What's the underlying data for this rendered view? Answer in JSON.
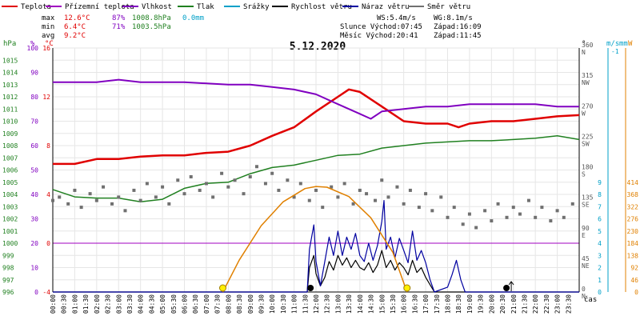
{
  "colors": {
    "teplota": "#e00000",
    "prizemni": "#a000c0",
    "vlhkost": "#8000c0",
    "tlak": "#208020",
    "srazky": "#00a0c8",
    "rychlost": "#000000",
    "naraz": "#0000a0",
    "smer": "#707070",
    "slunce": "#e08000",
    "zero_line": "#a000c0"
  },
  "legend": [
    {
      "label": "Teplota",
      "color": "#e00000"
    },
    {
      "label": "Přízemní teplota",
      "color": "#a000c0"
    },
    {
      "label": "Vlhkost",
      "color": "#8000c0"
    },
    {
      "label": "Tlak",
      "color": "#208020"
    },
    {
      "label": "Srážky",
      "color": "#00a0c8"
    },
    {
      "label": "Rychlost větru",
      "color": "#000000"
    },
    {
      "label": "Náraz větru",
      "color": "#0000a0"
    },
    {
      "label": "Směr větru",
      "color": "#707070"
    }
  ],
  "stats": {
    "max_label": "max",
    "max_temp": "12.6°C",
    "max_hum": "87%",
    "max_press": "1008.8hPa",
    "rain": "0.0mm",
    "min_label": "min",
    "min_temp": "6.4°C",
    "min_hum": "71%",
    "min_press": "1003.5hPa",
    "avg_label": "avg",
    "avg_temp": "9.2°C"
  },
  "info": {
    "ws": "WS:5.4m/s",
    "wg": "WG:8.1m/s",
    "slunce": "Slunce Východ:07:45",
    "slunce_zapad": "Západ:16:09",
    "mesic": "Měsíc  Východ:20:41",
    "mesic_zapad": "Západ:11:45"
  },
  "title": "5.12.2020",
  "axis_units": {
    "hpa": "hPa",
    "pct": "%",
    "temp": "°C",
    "deg": "°",
    "ms": "m/s",
    "mm": "mm",
    "w": "W",
    "cas": "čas"
  },
  "chart_data": {
    "type": "line",
    "title": "5.12.2020",
    "x_unit": "time (HH:MM)",
    "x_ticks": [
      "00:00",
      "00:30",
      "01:00",
      "01:30",
      "02:00",
      "02:30",
      "03:00",
      "03:30",
      "04:00",
      "04:30",
      "05:00",
      "05:30",
      "06:00",
      "06:30",
      "07:00",
      "07:30",
      "08:00",
      "08:30",
      "09:00",
      "09:30",
      "10:00",
      "10:30",
      "11:00",
      "11:30",
      "12:00",
      "12:30",
      "13:00",
      "13:30",
      "14:00",
      "14:30",
      "15:00",
      "15:30",
      "16:00",
      "16:30",
      "17:00",
      "17:30",
      "18:00",
      "18:30",
      "19:00",
      "19:30",
      "20:00",
      "20:30",
      "21:00",
      "21:30",
      "22:00",
      "22:30",
      "23:00",
      "23:30"
    ],
    "xlim": [
      0,
      24
    ],
    "axes": {
      "hpa": {
        "ticks": [
          996,
          997,
          998,
          999,
          1000,
          1001,
          1002,
          1003,
          1004,
          1005,
          1006,
          1007,
          1008,
          1009,
          1010,
          1011,
          1012,
          1013,
          1014,
          1015
        ],
        "range": [
          996,
          1016
        ]
      },
      "pct": {
        "ticks": [
          0,
          10,
          20,
          30,
          40,
          50,
          60,
          70,
          80,
          90,
          100
        ],
        "range": [
          0,
          100
        ]
      },
      "temp": {
        "ticks": [
          -4,
          0,
          4,
          8,
          12,
          16
        ],
        "range": [
          -4,
          16
        ]
      },
      "deg": {
        "ticks": [
          {
            "v": 0,
            "t": "0"
          },
          {
            "v": 45,
            "t": "45"
          },
          {
            "v": 90,
            "t": "90"
          },
          {
            "v": 135,
            "t": "135"
          },
          {
            "v": 180,
            "t": "180"
          },
          {
            "v": 225,
            "t": "225"
          },
          {
            "v": 270,
            "t": "270"
          },
          {
            "v": 315,
            "t": "315"
          },
          {
            "v": 360,
            "t": "360"
          }
        ],
        "dir_labels": [
          "N",
          "NE",
          "E",
          "SE",
          "S",
          "SW",
          "W",
          "NW",
          "N"
        ],
        "range": [
          0,
          360
        ]
      },
      "ms": {
        "ticks": [
          0,
          1,
          2,
          3,
          4,
          5,
          6,
          7,
          8,
          9
        ],
        "range": [
          0,
          20
        ]
      },
      "w": {
        "ticks": [
          0,
          46,
          92,
          138,
          184,
          230,
          276,
          322,
          368,
          414
        ],
        "range": [
          0,
          920
        ]
      },
      "mm": {
        "ticks": [
          "-1"
        ]
      }
    },
    "series": [
      {
        "name": "Teplota",
        "axis": "temp",
        "points": [
          [
            0,
            6.5
          ],
          [
            1,
            6.5
          ],
          [
            2,
            6.9
          ],
          [
            3,
            6.9
          ],
          [
            4,
            7.1
          ],
          [
            5,
            7.2
          ],
          [
            6,
            7.2
          ],
          [
            7,
            7.4
          ],
          [
            8,
            7.5
          ],
          [
            9,
            8.0
          ],
          [
            10,
            8.8
          ],
          [
            11,
            9.5
          ],
          [
            12,
            10.8
          ],
          [
            13,
            12.0
          ],
          [
            13.5,
            12.6
          ],
          [
            14,
            12.4
          ],
          [
            15,
            11.2
          ],
          [
            16,
            10.0
          ],
          [
            17,
            9.8
          ],
          [
            18,
            9.8
          ],
          [
            18.5,
            9.5
          ],
          [
            19,
            9.8
          ],
          [
            20,
            10.0
          ],
          [
            21,
            10.0
          ],
          [
            22,
            10.2
          ],
          [
            23,
            10.4
          ],
          [
            24,
            10.5
          ]
        ]
      },
      {
        "name": "Vlhkost",
        "axis": "pct",
        "points": [
          [
            0,
            86
          ],
          [
            2,
            86
          ],
          [
            3,
            87
          ],
          [
            4,
            86
          ],
          [
            6,
            86
          ],
          [
            8,
            85
          ],
          [
            9,
            85
          ],
          [
            10,
            84
          ],
          [
            11,
            83
          ],
          [
            12,
            81
          ],
          [
            13,
            77
          ],
          [
            14,
            73
          ],
          [
            14.5,
            71
          ],
          [
            15,
            74
          ],
          [
            16,
            75
          ],
          [
            17,
            76
          ],
          [
            18,
            76
          ],
          [
            19,
            77
          ],
          [
            20,
            77
          ],
          [
            21,
            77
          ],
          [
            22,
            77
          ],
          [
            23,
            76
          ],
          [
            24,
            76
          ]
        ]
      },
      {
        "name": "Tlak",
        "axis": "hpa",
        "points": [
          [
            0,
            1004.4
          ],
          [
            1,
            1003.8
          ],
          [
            2,
            1003.7
          ],
          [
            3,
            1003.7
          ],
          [
            4,
            1003.4
          ],
          [
            5,
            1003.6
          ],
          [
            6,
            1004.5
          ],
          [
            7,
            1004.9
          ],
          [
            8,
            1005.0
          ],
          [
            9,
            1005.7
          ],
          [
            10,
            1006.2
          ],
          [
            11,
            1006.4
          ],
          [
            12,
            1006.8
          ],
          [
            13,
            1007.2
          ],
          [
            14,
            1007.3
          ],
          [
            15,
            1007.8
          ],
          [
            16,
            1008.0
          ],
          [
            17,
            1008.2
          ],
          [
            18,
            1008.3
          ],
          [
            19,
            1008.4
          ],
          [
            20,
            1008.4
          ],
          [
            21,
            1008.5
          ],
          [
            22,
            1008.6
          ],
          [
            23,
            1008.8
          ],
          [
            24,
            1008.5
          ]
        ]
      },
      {
        "name": "Rychlost větru",
        "axis": "ms",
        "points": [
          [
            0,
            0
          ],
          [
            11.6,
            0
          ],
          [
            11.7,
            2.0
          ],
          [
            11.9,
            3.0
          ],
          [
            12.0,
            1.5
          ],
          [
            12.2,
            0.5
          ],
          [
            12.4,
            1.2
          ],
          [
            12.6,
            2.5
          ],
          [
            12.8,
            1.8
          ],
          [
            13.0,
            3.0
          ],
          [
            13.2,
            2.2
          ],
          [
            13.4,
            2.8
          ],
          [
            13.6,
            2.0
          ],
          [
            13.8,
            2.6
          ],
          [
            14.0,
            2.0
          ],
          [
            14.2,
            1.8
          ],
          [
            14.4,
            2.4
          ],
          [
            14.6,
            1.6
          ],
          [
            14.8,
            2.2
          ],
          [
            15.0,
            3.4
          ],
          [
            15.2,
            2.0
          ],
          [
            15.4,
            2.6
          ],
          [
            15.6,
            1.8
          ],
          [
            15.8,
            2.4
          ],
          [
            16.0,
            2.0
          ],
          [
            16.2,
            1.4
          ],
          [
            16.4,
            2.6
          ],
          [
            16.6,
            1.6
          ],
          [
            16.8,
            2.0
          ],
          [
            17.0,
            1.2
          ],
          [
            17.2,
            0.6
          ],
          [
            17.4,
            0
          ],
          [
            24,
            0
          ]
        ]
      },
      {
        "name": "Náraz větru",
        "axis": "ms",
        "points": [
          [
            0,
            0
          ],
          [
            11.6,
            0
          ],
          [
            11.7,
            3.5
          ],
          [
            11.9,
            5.5
          ],
          [
            12.0,
            2.5
          ],
          [
            12.2,
            0.5
          ],
          [
            12.4,
            2.5
          ],
          [
            12.6,
            4.5
          ],
          [
            12.8,
            3.0
          ],
          [
            13.0,
            5.0
          ],
          [
            13.2,
            3.0
          ],
          [
            13.4,
            4.5
          ],
          [
            13.6,
            3.5
          ],
          [
            13.8,
            4.8
          ],
          [
            14.0,
            3.0
          ],
          [
            14.2,
            2.5
          ],
          [
            14.4,
            4.0
          ],
          [
            14.6,
            2.6
          ],
          [
            14.8,
            3.8
          ],
          [
            15.0,
            5.8
          ],
          [
            15.1,
            7.5
          ],
          [
            15.2,
            3.5
          ],
          [
            15.4,
            4.5
          ],
          [
            15.6,
            2.8
          ],
          [
            15.8,
            4.4
          ],
          [
            16.0,
            3.4
          ],
          [
            16.2,
            2.4
          ],
          [
            16.4,
            5.0
          ],
          [
            16.6,
            2.6
          ],
          [
            16.8,
            3.4
          ],
          [
            17.0,
            2.4
          ],
          [
            17.2,
            1.0
          ],
          [
            17.4,
            0
          ],
          [
            18.0,
            0.4
          ],
          [
            18.2,
            1.4
          ],
          [
            18.4,
            2.6
          ],
          [
            18.6,
            1.0
          ],
          [
            18.8,
            0
          ],
          [
            24,
            0
          ]
        ]
      },
      {
        "name": "Směr větru",
        "axis": "deg",
        "style": "points",
        "points": [
          [
            0,
            135
          ],
          [
            0.3,
            140
          ],
          [
            0.7,
            130
          ],
          [
            1,
            150
          ],
          [
            1.3,
            125
          ],
          [
            1.7,
            145
          ],
          [
            2,
            135
          ],
          [
            2.3,
            155
          ],
          [
            2.7,
            130
          ],
          [
            3,
            140
          ],
          [
            3.3,
            120
          ],
          [
            3.7,
            150
          ],
          [
            4,
            135
          ],
          [
            4.3,
            160
          ],
          [
            4.7,
            140
          ],
          [
            5,
            155
          ],
          [
            5.3,
            130
          ],
          [
            5.7,
            165
          ],
          [
            6,
            145
          ],
          [
            6.3,
            170
          ],
          [
            6.7,
            150
          ],
          [
            7,
            160
          ],
          [
            7.3,
            140
          ],
          [
            7.7,
            175
          ],
          [
            8,
            155
          ],
          [
            8.3,
            165
          ],
          [
            8.7,
            145
          ],
          [
            9,
            170
          ],
          [
            9.3,
            185
          ],
          [
            9.7,
            160
          ],
          [
            10,
            175
          ],
          [
            10.3,
            150
          ],
          [
            10.7,
            165
          ],
          [
            11,
            140
          ],
          [
            11.3,
            160
          ],
          [
            11.7,
            135
          ],
          [
            12,
            150
          ],
          [
            12.3,
            125
          ],
          [
            12.7,
            155
          ],
          [
            13,
            140
          ],
          [
            13.3,
            160
          ],
          [
            13.7,
            130
          ],
          [
            14,
            150
          ],
          [
            14.3,
            145
          ],
          [
            14.7,
            135
          ],
          [
            15,
            165
          ],
          [
            15.3,
            140
          ],
          [
            15.7,
            155
          ],
          [
            16,
            130
          ],
          [
            16.3,
            150
          ],
          [
            16.7,
            125
          ],
          [
            17,
            145
          ],
          [
            17.3,
            120
          ],
          [
            17.7,
            140
          ],
          [
            18,
            110
          ],
          [
            18.3,
            125
          ],
          [
            18.7,
            100
          ],
          [
            19,
            115
          ],
          [
            19.3,
            95
          ],
          [
            19.7,
            120
          ],
          [
            20,
            105
          ],
          [
            20.3,
            130
          ],
          [
            20.7,
            110
          ],
          [
            21,
            125
          ],
          [
            21.3,
            115
          ],
          [
            21.7,
            135
          ],
          [
            22,
            110
          ],
          [
            22.3,
            125
          ],
          [
            22.7,
            105
          ],
          [
            23,
            120
          ],
          [
            23.3,
            110
          ],
          [
            23.7,
            130
          ]
        ]
      },
      {
        "name": "Slunce",
        "axis": "w",
        "points": [
          [
            7.75,
            0
          ],
          [
            8.5,
            120
          ],
          [
            9.5,
            250
          ],
          [
            10.5,
            340
          ],
          [
            11.5,
            390
          ],
          [
            12.0,
            398
          ],
          [
            12.5,
            395
          ],
          [
            13.5,
            360
          ],
          [
            14.5,
            280
          ],
          [
            15.5,
            150
          ],
          [
            16.15,
            0
          ]
        ]
      }
    ],
    "markers": {
      "sunrise": "07:45",
      "sunset": "16:09",
      "moonset": "11:45",
      "moonrise": "20:41"
    },
    "grid": true
  }
}
